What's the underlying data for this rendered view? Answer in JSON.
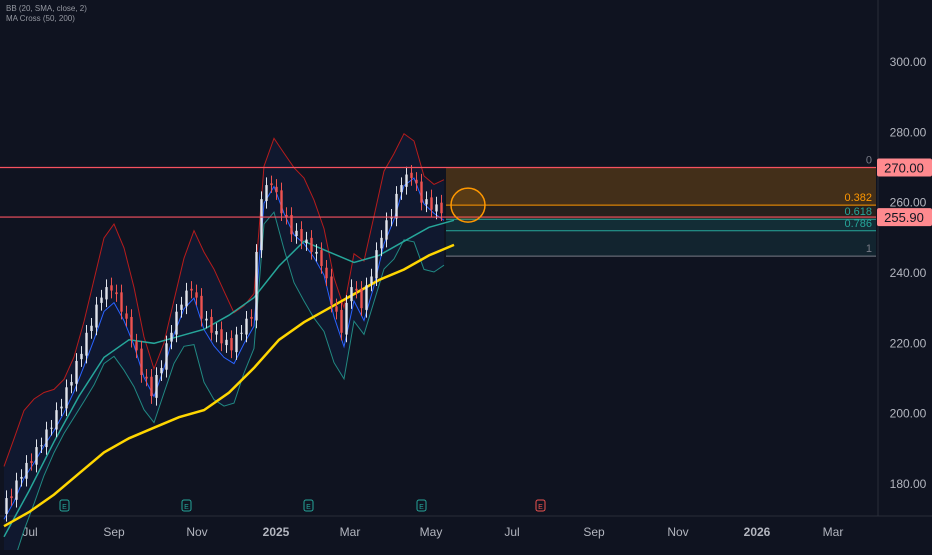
{
  "legend": {
    "bb": "BB (20, SMA, close, 2)",
    "ma": "MA Cross (50, 200)"
  },
  "colors": {
    "background": "#0f1320",
    "up_candle": "#e0e3eb",
    "down_candle": "#ef5350",
    "bb_band": "#b71c1c",
    "bb_basis": "#2962ff",
    "ma50": "#26a69a",
    "ma200": "#ffd600",
    "resistance": "#f7525f",
    "fib_orange": "#ff9800",
    "fib_teal": "#26a69a",
    "fib_gray": "#787b86"
  },
  "chart_data": {
    "type": "line",
    "y_axis": {
      "range": [
        170,
        310
      ],
      "ticks": [
        "180.00",
        "200.00",
        "220.00",
        "240.00",
        "260.00",
        "280.00",
        "300.00"
      ],
      "tick_values": [
        180,
        200,
        220,
        240,
        260,
        280,
        300
      ]
    },
    "x_axis": {
      "ticks": [
        "Jul",
        "Sep",
        "Nov",
        "2025",
        "Mar",
        "May",
        "Jul",
        "Sep",
        "Nov",
        "2026",
        "Mar"
      ]
    },
    "price_labels": [
      {
        "value": 270.0,
        "label": "270.00"
      },
      {
        "value": 255.9,
        "label": "255.90"
      }
    ],
    "horizontal_lines": [
      270.0,
      255.9
    ],
    "fibonacci": [
      {
        "level": "0",
        "value": 270.0
      },
      {
        "level": "0.382",
        "value": 259.3
      },
      {
        "level": "0.618",
        "value": 255.3
      },
      {
        "level": "0.786",
        "value": 252.0
      },
      {
        "level": "1",
        "value": 244.8
      }
    ],
    "earnings_markers": [
      "E",
      "E",
      "E",
      "E",
      "E"
    ],
    "series": [
      {
        "name": "Close",
        "x": [
          0,
          2,
          4,
          6,
          8,
          10,
          12,
          14,
          16,
          18,
          20,
          22,
          24,
          26,
          28,
          30,
          32,
          34,
          36,
          38,
          40,
          42,
          44,
          46,
          48,
          50,
          52,
          54,
          56,
          58,
          60,
          62,
          64,
          66,
          68,
          70,
          72,
          74,
          76,
          78,
          80,
          82,
          84,
          86,
          88,
          90,
          92
        ],
        "y": [
          173,
          177,
          183,
          187,
          192,
          197,
          203,
          210,
          218,
          226,
          234,
          236,
          230,
          222,
          212,
          206,
          214,
          224,
          232,
          236,
          228,
          224,
          221,
          219,
          224,
          228,
          262,
          266,
          258,
          252,
          250,
          247,
          243,
          232,
          224,
          237,
          231,
          240,
          251,
          257,
          266,
          268,
          261,
          259,
          258,
          null,
          null
        ]
      },
      {
        "name": "MA 50",
        "x": [
          0,
          5,
          10,
          15,
          20,
          25,
          30,
          35,
          40,
          45,
          50,
          55,
          60,
          65,
          70,
          75,
          80,
          85,
          90
        ],
        "y": [
          165,
          178,
          192,
          205,
          216,
          221,
          220,
          222,
          224,
          228,
          233,
          242,
          249,
          246,
          243,
          245,
          249,
          253,
          255
        ]
      },
      {
        "name": "MA 200",
        "x": [
          0,
          5,
          10,
          15,
          20,
          25,
          30,
          35,
          40,
          45,
          50,
          55,
          60,
          65,
          70,
          75,
          80,
          85,
          90
        ],
        "y": [
          168,
          172,
          177,
          183,
          189,
          193,
          196,
          199,
          201,
          206,
          213,
          221,
          226,
          230,
          234,
          238,
          241,
          245,
          248
        ]
      }
    ]
  }
}
